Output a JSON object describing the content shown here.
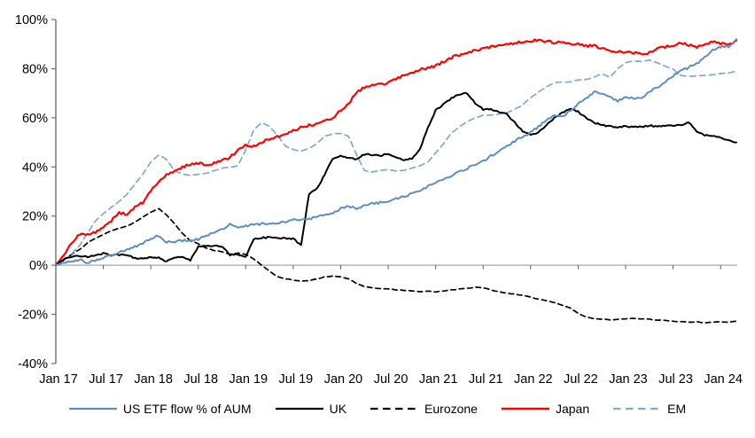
{
  "chart_data": {
    "type": "line",
    "title": "",
    "xlabel": "",
    "ylabel": "",
    "ylim": [
      -40,
      100
    ],
    "y_ticks": [
      100,
      80,
      60,
      40,
      20,
      0,
      -20,
      -40
    ],
    "y_tick_labels": [
      "100%",
      "80%",
      "60%",
      "40%",
      "20%",
      "0%",
      "-20%",
      "-40%"
    ],
    "x_tick_labels": [
      "Jan 17",
      "Jul 17",
      "Jan 18",
      "Jul 18",
      "Jan 19",
      "Jul 19",
      "Jan 20",
      "Jul 20",
      "Jan 21",
      "Jul 21",
      "Jan 22",
      "Jul 22",
      "Jan 23",
      "Jul 23",
      "Jan 24"
    ],
    "x_range": {
      "start": "Jan 2017",
      "end": "Mar 2024",
      "sampling": "monthly estimates read from weekly lines"
    },
    "grid": "none",
    "legend_position": "bottom",
    "axis_color": "#595959",
    "zero_line_color": "#A6A6A6",
    "text_color": "#000000",
    "background_color": "#FFFFFF",
    "series": [
      {
        "name": "US ETF flow % of AUM",
        "color": "#5B8EC4",
        "style": "solid",
        "values": [
          0,
          1,
          1.5,
          2.5,
          1,
          2,
          3.2,
          4,
          5,
          6.5,
          7.5,
          8.7,
          11,
          12,
          9.5,
          9.5,
          10,
          10,
          10.5,
          12,
          13.5,
          14.5,
          16.5,
          15,
          16,
          16.5,
          16.8,
          17.2,
          17,
          17.8,
          18.4,
          18.2,
          19,
          19.5,
          20.5,
          21.5,
          23,
          24,
          23,
          24.5,
          25,
          25.5,
          26,
          27,
          28,
          29,
          30.5,
          32,
          33.5,
          35,
          36.5,
          38,
          39.5,
          41,
          42.5,
          44.5,
          46.5,
          48.5,
          50.5,
          52.5,
          54,
          56.5,
          59,
          61,
          60.5,
          63,
          65.5,
          68,
          70.5,
          70,
          68.5,
          67,
          68.5,
          68,
          68.3,
          70.5,
          72.5,
          74.5,
          77,
          79,
          80.5,
          82,
          85,
          87.5,
          89,
          89,
          92
        ]
      },
      {
        "name": "UK",
        "color": "#000000",
        "style": "solid",
        "values": [
          0,
          2.5,
          3.5,
          3.8,
          3.5,
          4,
          4.8,
          4.2,
          4.3,
          4,
          3,
          2.8,
          3.2,
          3,
          1.5,
          3,
          3.5,
          2,
          7.5,
          8,
          8,
          7.8,
          4.2,
          4.5,
          3.5,
          10.5,
          11.2,
          11.3,
          11.2,
          11,
          10.8,
          8.2,
          29,
          31,
          37,
          43.5,
          44.5,
          43.8,
          43,
          45.2,
          44.8,
          44.6,
          45.3,
          44,
          42.8,
          43.5,
          47,
          56,
          63,
          65.5,
          68,
          69.5,
          70,
          66,
          63.5,
          63.3,
          62.5,
          61.5,
          58,
          54.5,
          53.2,
          54,
          57,
          60,
          62,
          63.8,
          62.5,
          60,
          58,
          57,
          56.5,
          56.2,
          56.5,
          56.3,
          56.3,
          56.8,
          56.5,
          56.8,
          57,
          57.2,
          58,
          54.5,
          53,
          52.5,
          52,
          51,
          50
        ]
      },
      {
        "name": "Eurozone",
        "color": "#000000",
        "style": "dashed",
        "values": [
          0,
          2,
          4.5,
          6.5,
          9,
          11,
          12.5,
          14,
          15,
          16,
          17.5,
          19.5,
          21.5,
          23,
          20.5,
          17,
          13,
          10,
          8.7,
          7,
          6,
          5.5,
          4.5,
          5,
          4.5,
          2.5,
          0,
          -2.5,
          -4.5,
          -5.5,
          -6,
          -6.5,
          -6.3,
          -5.5,
          -4.7,
          -4.5,
          -4.7,
          -5.5,
          -7.5,
          -8.7,
          -9.2,
          -9.4,
          -9.6,
          -10,
          -10.2,
          -10.5,
          -10.8,
          -10.6,
          -10.8,
          -10.4,
          -10,
          -9.7,
          -9.3,
          -9,
          -9.2,
          -10,
          -10.8,
          -11.3,
          -11.8,
          -12.2,
          -13,
          -13.8,
          -14.4,
          -15.3,
          -16.2,
          -17.5,
          -19.5,
          -21,
          -21.7,
          -22,
          -22.2,
          -22,
          -21.8,
          -21.7,
          -21.8,
          -22,
          -22.3,
          -22.5,
          -22.8,
          -23,
          -23.2,
          -23,
          -23.5,
          -23.2,
          -23,
          -23.3,
          -22.8
        ]
      },
      {
        "name": "Japan",
        "color": "#FF0000",
        "style": "solid",
        "values": [
          0,
          4,
          9,
          12.5,
          12.5,
          13.5,
          15.2,
          18,
          21.5,
          20.5,
          23.5,
          25.5,
          30,
          34,
          37,
          38.5,
          40,
          41,
          41.5,
          41,
          41.5,
          42.5,
          44,
          46.5,
          49,
          48.5,
          50,
          51.5,
          52.5,
          53.5,
          55,
          56,
          57,
          57.5,
          58.5,
          60,
          63,
          66,
          70,
          72.5,
          73,
          73.5,
          74.5,
          76,
          77.5,
          78.5,
          79.5,
          80.5,
          81,
          83,
          84.5,
          85.5,
          86.5,
          87.5,
          88.3,
          88.8,
          89.5,
          90,
          90.5,
          91,
          91.3,
          91.5,
          91,
          90.8,
          91,
          90.3,
          89.9,
          89.2,
          89.2,
          88.5,
          87.5,
          87,
          86.8,
          86.3,
          85.8,
          86.5,
          88,
          88.8,
          89.3,
          90.3,
          89.5,
          89,
          90,
          90.8,
          90.3,
          89.5,
          91.5
        ]
      },
      {
        "name": "EM",
        "color": "#7FA8D4",
        "style": "dashed",
        "values": [
          0,
          2,
          4.5,
          8,
          13,
          18,
          21,
          23.5,
          26,
          29,
          33,
          37,
          42,
          44.8,
          43,
          38.5,
          37,
          36.5,
          37,
          37.5,
          38.5,
          39.4,
          40,
          40.4,
          47,
          55,
          58,
          56.5,
          53,
          48.5,
          47,
          46.5,
          47.5,
          49.5,
          52.5,
          53.5,
          53.5,
          52.5,
          45,
          38.5,
          38,
          38.5,
          39,
          38.5,
          38.6,
          39.5,
          40.5,
          42,
          45.8,
          49.5,
          53.8,
          56.3,
          58.5,
          60,
          61,
          61,
          61.5,
          62,
          63.5,
          65.3,
          68.2,
          70.5,
          72.6,
          74.4,
          74.5,
          74.7,
          75.5,
          75.5,
          76.5,
          78,
          76.5,
          80,
          82.5,
          83,
          83,
          83.4,
          82.5,
          81,
          79.8,
          77.3,
          77,
          77,
          77.3,
          77.5,
          78,
          78.3,
          79
        ]
      }
    ]
  }
}
